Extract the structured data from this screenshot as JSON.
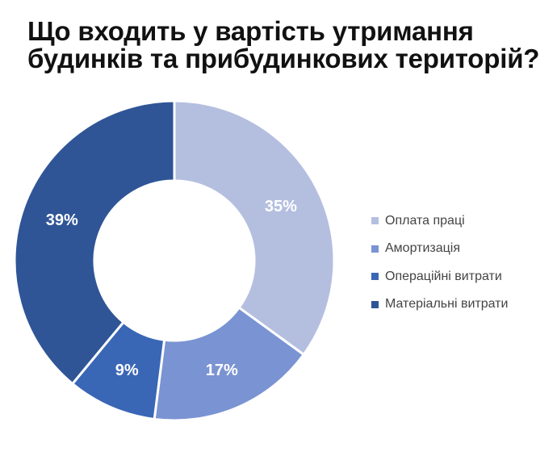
{
  "header": {
    "title_line1": "Що входить у вартість утримання",
    "title_line2": "будинків та прибудинкових територій?"
  },
  "chart_data": {
    "type": "pie",
    "title": "Що входить у вартість утримання будинків та прибудинкових територій?",
    "categories": [
      "Оплата праці",
      "Амортизація",
      "Операційні витрати",
      "Матеріальні витрати"
    ],
    "values": [
      35,
      17,
      9,
      39
    ],
    "labels": [
      "35%",
      "17%",
      "9%",
      "39%"
    ],
    "colors": [
      "#b4bfe0",
      "#7a93d2",
      "#3a66b6",
      "#2f5597"
    ],
    "legend_position": "right"
  }
}
